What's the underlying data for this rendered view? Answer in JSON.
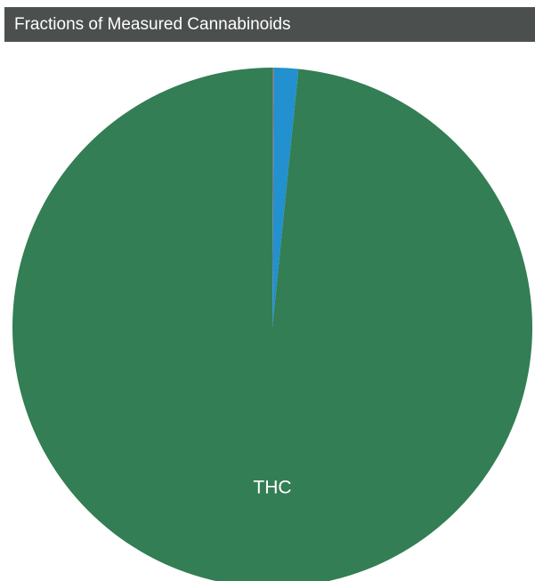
{
  "header": {
    "title": "Fractions of Measured Cannabinoids"
  },
  "chart_data": {
    "type": "pie",
    "title": "Fractions of Measured Cannabinoids",
    "categories": [
      "THC",
      "",
      ""
    ],
    "values": [
      98.4,
      1.5,
      0.1
    ],
    "colors": [
      "#337e54",
      "#2390cf",
      "#7a7a7a"
    ],
    "labels": [
      "THC",
      "",
      ""
    ],
    "start": "12 o'clock, clockwise order: gray, blue, green",
    "legend": "none"
  }
}
